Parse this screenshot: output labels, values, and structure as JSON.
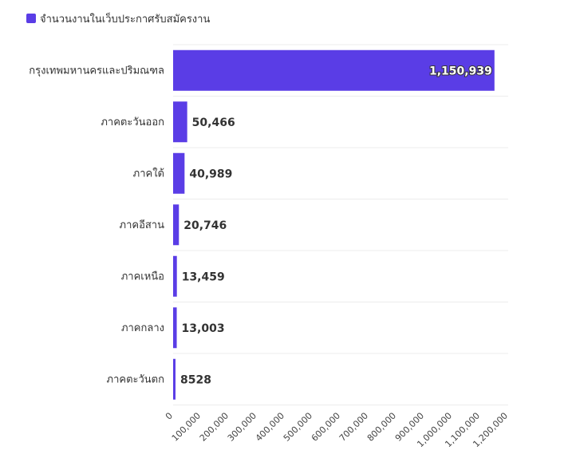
{
  "chart_data": {
    "type": "bar",
    "orientation": "horizontal",
    "categories": [
      "กรุงเทพมหานครและปริมณฑล",
      "ภาคตะวันออก",
      "ภาคใต้",
      "ภาคอีสาน",
      "ภาคเหนือ",
      "ภาคกลาง",
      "ภาคตะวันตก"
    ],
    "series": [
      {
        "name": "จำนวนงานในเว็บประกาศรับสมัครงาน",
        "values": [
          1150939,
          50466,
          40989,
          20746,
          13459,
          13003,
          8528
        ],
        "color": "#5a3de6"
      }
    ],
    "value_labels": [
      "1,150,939",
      "50,466",
      "40,989",
      "20,746",
      "13,459",
      "13,003",
      "8528"
    ],
    "x_ticks": [
      "0",
      "100,000",
      "200,000",
      "300,000",
      "400,000",
      "500,000",
      "600,000",
      "700,000",
      "800,000",
      "900,000",
      "1,000,000",
      "1,100,000",
      "1,200,000"
    ],
    "xlim": [
      0,
      1200000
    ],
    "grid": true,
    "legend_position": "top-left"
  }
}
